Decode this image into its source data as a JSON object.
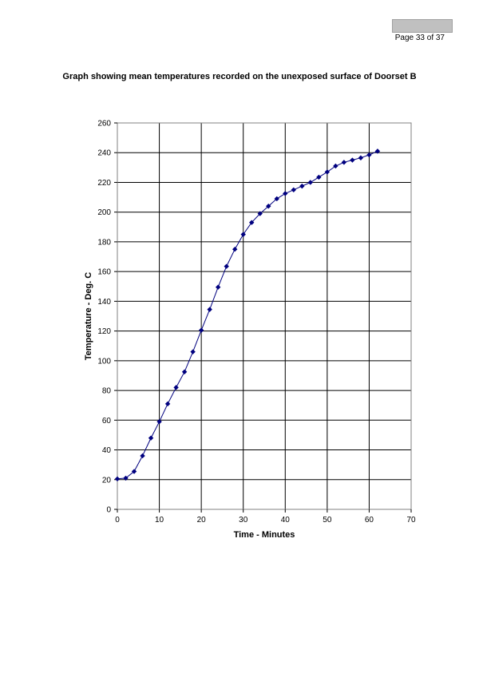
{
  "page": {
    "number_label": "Page 33 of 37"
  },
  "chart_data": {
    "type": "line",
    "title": "Graph showing mean temperatures recorded on the unexposed surface of Doorset B",
    "xlabel": "Time - Minutes",
    "ylabel": "Temperature - Deg. C",
    "xlim": [
      0,
      70
    ],
    "ylim": [
      0,
      260
    ],
    "xticks": [
      0,
      10,
      20,
      30,
      40,
      50,
      60,
      70
    ],
    "yticks": [
      0,
      20,
      40,
      60,
      80,
      100,
      120,
      140,
      160,
      180,
      200,
      220,
      240,
      260
    ],
    "grid": true,
    "legend": "none",
    "series": [
      {
        "color": "#00007f",
        "marker": "diamond",
        "x": [
          0,
          2,
          4,
          6,
          8,
          10,
          12,
          14,
          16,
          18,
          20,
          22,
          24,
          26,
          28,
          30,
          32,
          34,
          36,
          38,
          40,
          42,
          44,
          46,
          48,
          50,
          52,
          54,
          56,
          58,
          60,
          62
        ],
        "y": [
          20.5,
          21,
          25.5,
          36,
          48,
          59,
          71,
          82,
          92.5,
          106,
          120.5,
          134.5,
          149.5,
          163.5,
          175,
          185,
          193,
          199,
          204,
          209,
          212.5,
          215,
          217.5,
          220,
          223.5,
          227,
          231,
          233.5,
          235,
          236.5,
          238.5,
          241
        ]
      }
    ]
  }
}
